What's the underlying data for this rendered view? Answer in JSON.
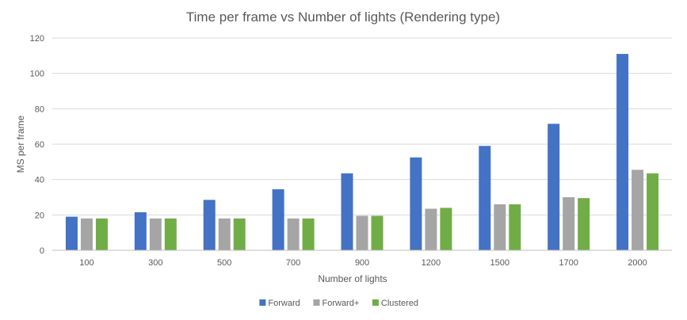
{
  "chart_data": {
    "type": "bar",
    "title": "Time per frame vs Number of lights (Rendering type)",
    "xlabel": "Number of lights",
    "ylabel": "MS per frame",
    "ylim": [
      0,
      120
    ],
    "yticks": [
      0,
      20,
      40,
      60,
      80,
      100,
      120
    ],
    "grid": true,
    "legend_position": "bottom",
    "categories": [
      "100",
      "300",
      "500",
      "700",
      "900",
      "1200",
      "1500",
      "1700",
      "2000"
    ],
    "series": [
      {
        "name": "Forward",
        "color": "#4472c4",
        "values": [
          19,
          21.5,
          28.5,
          34.5,
          43.5,
          52.5,
          59,
          71.5,
          111
        ]
      },
      {
        "name": "Forward+",
        "color": "#a5a5a5",
        "values": [
          18,
          18,
          18,
          18,
          19.5,
          23.5,
          26,
          30,
          45.5
        ]
      },
      {
        "name": "Clustered",
        "color": "#70ad47",
        "values": [
          18,
          18,
          18,
          18,
          19.5,
          24,
          26,
          29.5,
          43.5
        ]
      }
    ]
  }
}
